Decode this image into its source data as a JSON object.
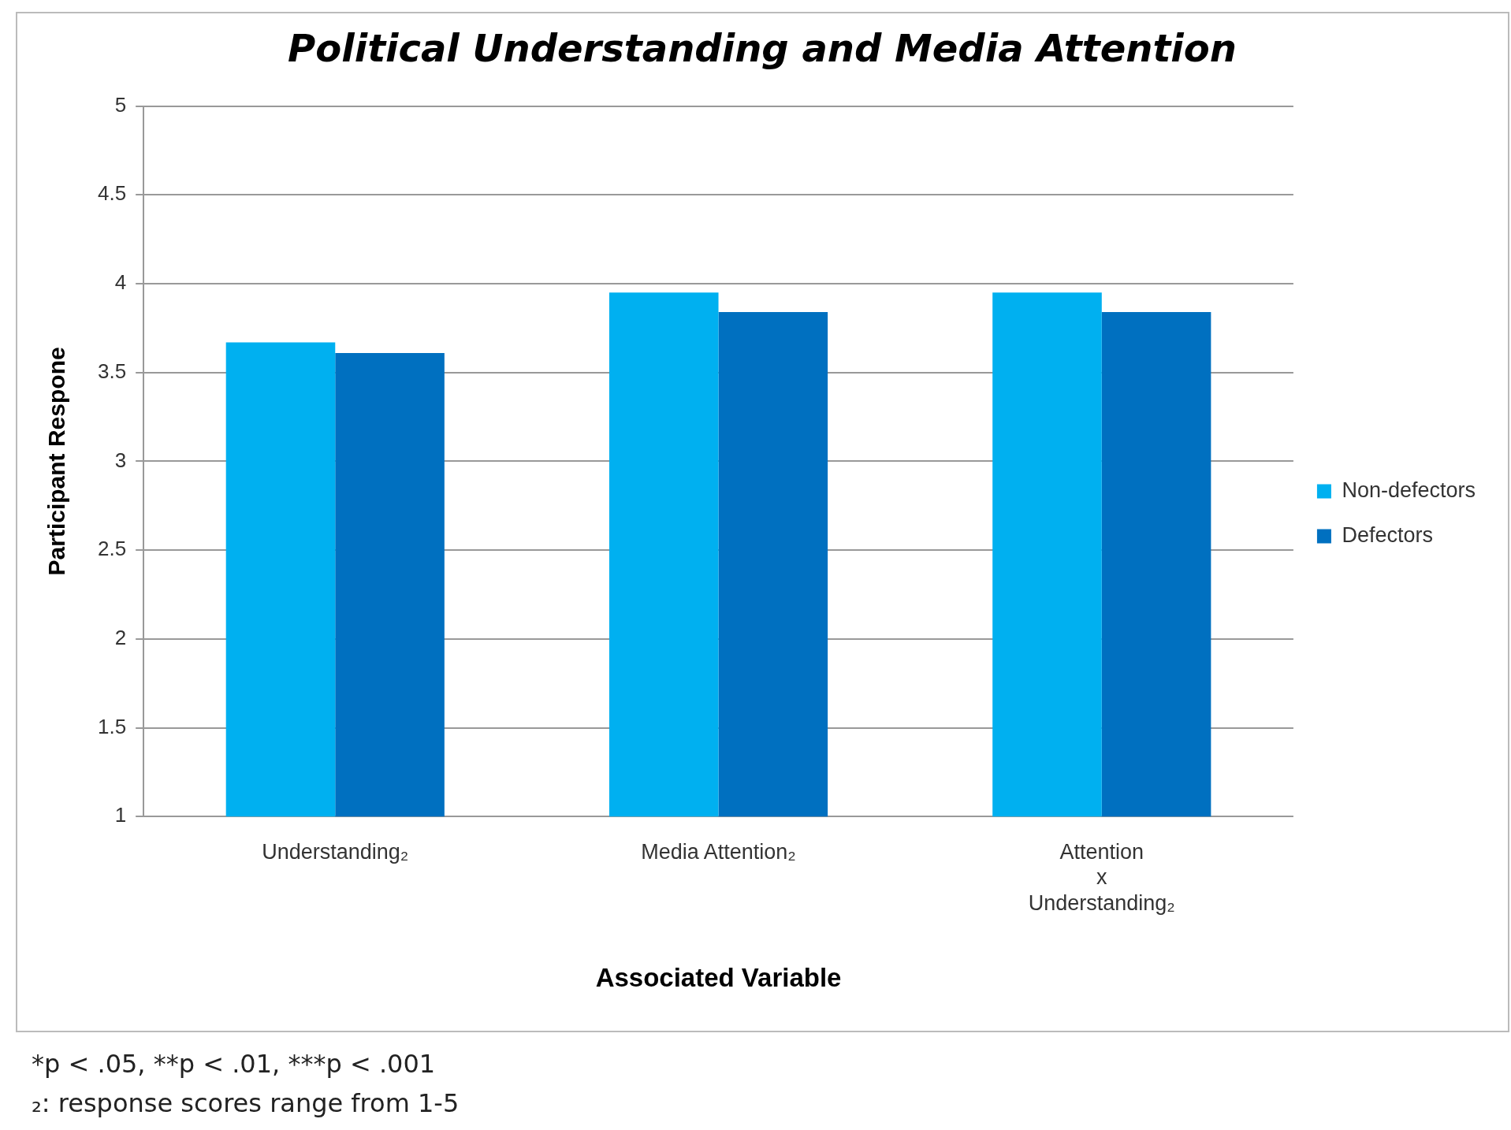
{
  "chart_data": {
    "type": "bar",
    "title": "Political Understanding and Media Attention",
    "xlabel": "Associated Variable",
    "ylabel": "Participant Respone",
    "categories": [
      "Understanding₂",
      "Media Attention₂",
      "Attention\nx\nUnderstanding₂"
    ],
    "series": [
      {
        "name": "Non-defectors",
        "color": "#00b0f0",
        "values": [
          3.67,
          3.95,
          3.95
        ]
      },
      {
        "name": "Defectors",
        "color": "#0070c0",
        "values": [
          3.61,
          3.84,
          3.84
        ]
      }
    ],
    "ylim": [
      1,
      5
    ],
    "yticks": [
      1,
      1.5,
      2,
      2.5,
      3,
      3.5,
      4,
      4.5,
      5
    ],
    "grid": "y",
    "legend": "right",
    "annotations": [
      "*p < .05, **p < .01, ***p < .001",
      "₂: response scores range from 1-5"
    ]
  }
}
